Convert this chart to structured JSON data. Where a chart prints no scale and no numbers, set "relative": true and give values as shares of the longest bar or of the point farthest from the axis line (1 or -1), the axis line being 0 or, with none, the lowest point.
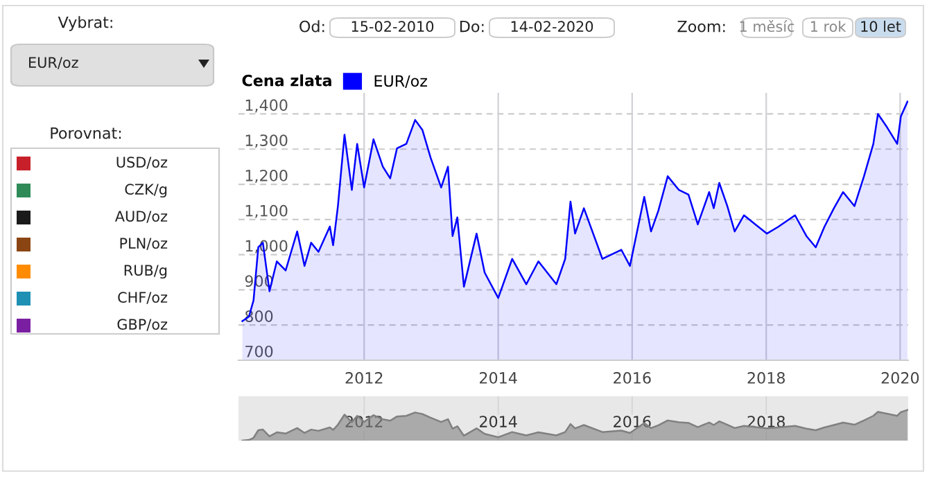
{
  "chart_data": [
    {
      "type": "area",
      "legend_title": "Cena zlata",
      "legend": "top left",
      "grid": true,
      "x": [
        "2010-03-08",
        "2010-04-13",
        "2010-05-08",
        "2010-06-03",
        "2010-06-28",
        "2010-08-03",
        "2010-09-12",
        "2010-10-30",
        "2011-01-01",
        "2011-02-10",
        "2011-03-18",
        "2011-04-27",
        "2011-06-28",
        "2011-07-16",
        "2011-08-11",
        "2011-09-16",
        "2011-10-26",
        "2011-11-24",
        "2012-01-01",
        "2012-02-21",
        "2012-04-12",
        "2012-05-22",
        "2012-06-28",
        "2012-08-18",
        "2012-10-05",
        "2012-11-14",
        "2012-12-28",
        "2013-02-24",
        "2013-04-02",
        "2013-04-27",
        "2013-05-23",
        "2013-06-28",
        "2013-09-05",
        "2013-10-19",
        "2014-01-01",
        "2014-03-18",
        "2014-06-03",
        "2014-08-08",
        "2014-11-14",
        "2015-01-01",
        "2015-01-30",
        "2015-02-24",
        "2015-04-13",
        "2015-07-23",
        "2015-11-03",
        "2015-12-20",
        "2016-03-07",
        "2016-04-13",
        "2016-05-23",
        "2016-07-13",
        "2016-09-12",
        "2016-11-03",
        "2016-12-24",
        "2017-02-24",
        "2017-03-21",
        "2017-04-20",
        "2017-06-03",
        "2017-07-13",
        "2017-09-02",
        "2017-11-03",
        "2018-01-05",
        "2018-03-07",
        "2018-06-07",
        "2018-08-08",
        "2018-09-28",
        "2018-11-14",
        "2019-01-05",
        "2019-02-24",
        "2019-04-27",
        "2019-06-18",
        "2019-08-08",
        "2019-09-02",
        "2019-10-23",
        "2019-12-16",
        "2020-01-05",
        "2020-02-10"
      ],
      "series": [
        {
          "name": "EUR/oz",
          "color": "#0000ff",
          "values": [
            811,
            824,
            870,
            1021,
            1034,
            896,
            981,
            955,
            1066,
            968,
            1034,
            1008,
            1080,
            1027,
            1138,
            1341,
            1184,
            1315,
            1191,
            1328,
            1250,
            1217,
            1302,
            1315,
            1383,
            1354,
            1276,
            1191,
            1250,
            1053,
            1106,
            909,
            1060,
            949,
            877,
            988,
            916,
            981,
            916,
            988,
            1151,
            1060,
            1132,
            988,
            1014,
            968,
            1164,
            1066,
            1125,
            1223,
            1184,
            1171,
            1086,
            1178,
            1132,
            1204,
            1138,
            1066,
            1112,
            1086,
            1060,
            1079,
            1112,
            1053,
            1021,
            1079,
            1132,
            1178,
            1138,
            1223,
            1315,
            1400,
            1361,
            1315,
            1393,
            1435
          ]
        }
      ],
      "xlim": [
        "2010-02-15",
        "2020-02-14"
      ],
      "xticks": [
        {
          "value": "2012-01-01",
          "label": "2012"
        },
        {
          "value": "2014-01-01",
          "label": "2014"
        },
        {
          "value": "2016-01-01",
          "label": "2016"
        },
        {
          "value": "2018-01-01",
          "label": "2018"
        },
        {
          "value": "2020-01-01",
          "label": "2020"
        }
      ],
      "ylim": [
        700,
        1460
      ],
      "yticks": [
        {
          "value": 700,
          "label": "700"
        },
        {
          "value": 800,
          "label": "800"
        },
        {
          "value": 900,
          "label": "900"
        },
        {
          "value": 1000,
          "label": "1,000"
        },
        {
          "value": 1100,
          "label": "1,100"
        },
        {
          "value": 1200,
          "label": "1,200"
        },
        {
          "value": 1300,
          "label": "1,300"
        },
        {
          "value": 1400,
          "label": "1,400"
        }
      ]
    },
    {
      "type": "area",
      "tick_labels": "x",
      "relative": true,
      "grid": "x",
      "x": [
        "2010-03-08",
        "2010-04-13",
        "2010-05-08",
        "2010-06-03",
        "2010-06-28",
        "2010-08-03",
        "2010-09-12",
        "2010-10-30",
        "2011-01-01",
        "2011-02-10",
        "2011-03-18",
        "2011-04-27",
        "2011-06-28",
        "2011-07-16",
        "2011-08-11",
        "2011-09-16",
        "2011-10-26",
        "2011-11-24",
        "2012-01-01",
        "2012-02-21",
        "2012-04-12",
        "2012-05-22",
        "2012-06-28",
        "2012-08-18",
        "2012-10-05",
        "2012-11-14",
        "2012-12-28",
        "2013-02-24",
        "2013-04-02",
        "2013-04-27",
        "2013-05-23",
        "2013-06-28",
        "2013-09-05",
        "2013-10-19",
        "2014-01-01",
        "2014-03-18",
        "2014-06-03",
        "2014-08-08",
        "2014-11-14",
        "2015-01-01",
        "2015-01-30",
        "2015-02-24",
        "2015-04-13",
        "2015-07-23",
        "2015-11-03",
        "2015-12-20",
        "2016-03-07",
        "2016-04-13",
        "2016-05-23",
        "2016-07-13",
        "2016-09-12",
        "2016-11-03",
        "2016-12-24",
        "2017-02-24",
        "2017-03-21",
        "2017-04-20",
        "2017-06-03",
        "2017-07-13",
        "2017-09-02",
        "2017-11-03",
        "2018-01-05",
        "2018-03-07",
        "2018-06-07",
        "2018-08-08",
        "2018-09-28",
        "2018-11-14",
        "2019-01-05",
        "2019-02-24",
        "2019-04-27",
        "2019-06-18",
        "2019-08-08",
        "2019-09-02",
        "2019-10-23",
        "2019-12-16",
        "2020-01-05",
        "2020-02-10"
      ],
      "series": [
        {
          "color": "#808080",
          "values": [
            0,
            0.02,
            0.09,
            0.34,
            0.36,
            0.14,
            0.27,
            0.23,
            0.41,
            0.25,
            0.36,
            0.32,
            0.43,
            0.35,
            0.52,
            0.85,
            0.6,
            0.81,
            0.61,
            0.83,
            0.7,
            0.65,
            0.79,
            0.81,
            0.92,
            0.87,
            0.75,
            0.61,
            0.7,
            0.39,
            0.47,
            0.16,
            0.4,
            0.22,
            0.11,
            0.28,
            0.17,
            0.27,
            0.17,
            0.28,
            0.54,
            0.4,
            0.51,
            0.28,
            0.33,
            0.25,
            0.57,
            0.41,
            0.5,
            0.66,
            0.6,
            0.58,
            0.44,
            0.59,
            0.51,
            0.63,
            0.52,
            0.41,
            0.48,
            0.44,
            0.4,
            0.43,
            0.48,
            0.39,
            0.34,
            0.43,
            0.51,
            0.59,
            0.52,
            0.66,
            0.81,
            0.94,
            0.88,
            0.81,
            0.93,
            1
          ]
        }
      ],
      "xlim": [
        "2010-02-15",
        "2020-02-14"
      ],
      "xticks": [
        {
          "value": "2012-01-01",
          "label": "2012"
        },
        {
          "value": "2014-01-01",
          "label": "2014"
        },
        {
          "value": "2016-01-01",
          "label": "2016"
        },
        {
          "value": "2018-01-01",
          "label": "2018"
        }
      ]
    },
    {
      "type": "other",
      "annotations": [
        "Vybrat:",
        "EUR/oz",
        "Porovnat:",
        "Od:",
        "15-02-2010",
        "Do:",
        "14-02-2020",
        "Zoom:",
        "1 měsíc",
        "1 rok",
        "10 let"
      ],
      "categories": [
        "USD/oz",
        "CZK/g",
        "AUD/oz",
        "PLN/oz",
        "RUB/g",
        "CHF/oz",
        "GBP/oz"
      ]
    }
  ]
}
